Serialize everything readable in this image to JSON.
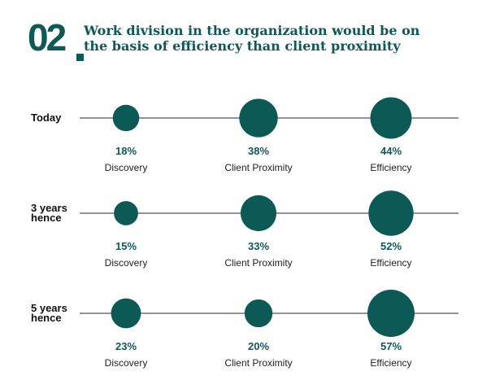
{
  "header": {
    "number": "02",
    "title_line1": "Work division in the organization would be on",
    "title_line2": "the basis of efficiency than client proximity"
  },
  "colors": {
    "accent": "#0c5a55",
    "line": "#555555"
  },
  "chart_data": {
    "type": "bubble",
    "title": "Work division in the organization would be on the basis of efficiency than client proximity",
    "categories": [
      "Discovery",
      "Client Proximity",
      "Efficiency"
    ],
    "unit": "%",
    "rows": [
      {
        "label_lines": [
          "Today"
        ],
        "values": [
          18,
          38,
          44
        ]
      },
      {
        "label_lines": [
          "3 years",
          "hence"
        ],
        "values": [
          15,
          33,
          52
        ]
      },
      {
        "label_lines": [
          "5 years",
          "hence"
        ],
        "values": [
          23,
          20,
          57
        ]
      }
    ]
  }
}
